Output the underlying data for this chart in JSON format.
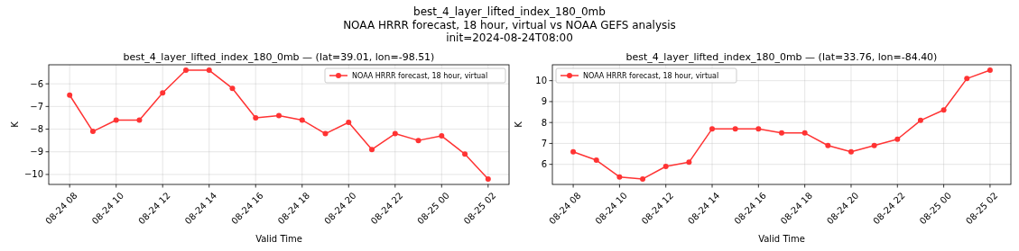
{
  "chart_data": [
    {
      "type": "line",
      "title": "best_4_layer_lifted_index_180_0mb — (lat=39.01, lon=-98.51)",
      "annotations": [
        "best_4_layer_lifted_index_180_0mb\nNOAA HRRR forecast, 18 hour, virtual vs NOAA GEFS analysis\ninit=2024-08-24T08:00"
      ],
      "xlabel": "Valid Time",
      "ylabel": "K",
      "x": [
        "2024-08-24T08:00",
        "2024-08-24T09:00",
        "2024-08-24T10:00",
        "2024-08-24T11:00",
        "2024-08-24T12:00",
        "2024-08-24T13:00",
        "2024-08-24T14:00",
        "2024-08-24T15:00",
        "2024-08-24T16:00",
        "2024-08-24T17:00",
        "2024-08-24T18:00",
        "2024-08-24T19:00",
        "2024-08-24T20:00",
        "2024-08-24T21:00",
        "2024-08-24T22:00",
        "2024-08-24T23:00",
        "2024-08-25T00:00",
        "2024-08-25T01:00",
        "2024-08-25T02:00"
      ],
      "series": [
        {
          "name": "NOAA HRRR forecast, 18 hour, virtual",
          "color": "#ff3333",
          "values": [
            -6.5,
            -8.1,
            -7.6,
            -7.6,
            -6.4,
            -5.4,
            -5.4,
            -6.2,
            -7.5,
            -7.4,
            -7.6,
            -8.2,
            -7.7,
            -8.9,
            -8.2,
            -8.5,
            -8.3,
            -9.1,
            -10.2
          ]
        }
      ],
      "xlim": [
        "2024-08-24T07:06",
        "2024-08-25T02:54"
      ],
      "xticks": [
        {
          "value": "2024-08-24T08:00",
          "label": "08-24 08"
        },
        {
          "value": "2024-08-24T10:00",
          "label": "08-24 10"
        },
        {
          "value": "2024-08-24T12:00",
          "label": "08-24 12"
        },
        {
          "value": "2024-08-24T14:00",
          "label": "08-24 14"
        },
        {
          "value": "2024-08-24T16:00",
          "label": "08-24 16"
        },
        {
          "value": "2024-08-24T18:00",
          "label": "08-24 18"
        },
        {
          "value": "2024-08-24T20:00",
          "label": "08-24 20"
        },
        {
          "value": "2024-08-24T22:00",
          "label": "08-24 22"
        },
        {
          "value": "2024-08-25T00:00",
          "label": "08-25 00"
        },
        {
          "value": "2024-08-25T02:00",
          "label": "08-25 02"
        }
      ],
      "ylim": [
        -10.44,
        -5.16
      ],
      "yticks": [
        -10,
        -9,
        -8,
        -7,
        -6
      ],
      "grid": true,
      "legend": "top right",
      "marker": "circle",
      "line_style": "solid"
    },
    {
      "type": "line",
      "title": "best_4_layer_lifted_index_180_0mb — (lat=33.76, lon=-84.40)",
      "xlabel": "Valid Time",
      "ylabel": "K",
      "x": [
        "2024-08-24T08:00",
        "2024-08-24T09:00",
        "2024-08-24T10:00",
        "2024-08-24T11:00",
        "2024-08-24T12:00",
        "2024-08-24T13:00",
        "2024-08-24T14:00",
        "2024-08-24T15:00",
        "2024-08-24T16:00",
        "2024-08-24T17:00",
        "2024-08-24T18:00",
        "2024-08-24T19:00",
        "2024-08-24T20:00",
        "2024-08-24T21:00",
        "2024-08-24T22:00",
        "2024-08-24T23:00",
        "2024-08-25T00:00",
        "2024-08-25T01:00",
        "2024-08-25T02:00"
      ],
      "series": [
        {
          "name": "NOAA HRRR forecast, 18 hour, virtual",
          "color": "#ff3333",
          "values": [
            6.6,
            6.2,
            5.4,
            5.3,
            5.9,
            6.1,
            7.7,
            7.7,
            7.7,
            7.5,
            7.5,
            6.9,
            6.6,
            6.9,
            7.2,
            8.1,
            8.6,
            10.1,
            10.5
          ]
        }
      ],
      "xlim": [
        "2024-08-24T07:06",
        "2024-08-25T02:54"
      ],
      "xticks": [
        {
          "value": "2024-08-24T08:00",
          "label": "08-24 08"
        },
        {
          "value": "2024-08-24T10:00",
          "label": "08-24 10"
        },
        {
          "value": "2024-08-24T12:00",
          "label": "08-24 12"
        },
        {
          "value": "2024-08-24T14:00",
          "label": "08-24 14"
        },
        {
          "value": "2024-08-24T16:00",
          "label": "08-24 16"
        },
        {
          "value": "2024-08-24T18:00",
          "label": "08-24 18"
        },
        {
          "value": "2024-08-24T20:00",
          "label": "08-24 20"
        },
        {
          "value": "2024-08-24T22:00",
          "label": "08-24 22"
        },
        {
          "value": "2024-08-25T00:00",
          "label": "08-25 00"
        },
        {
          "value": "2024-08-25T02:00",
          "label": "08-25 02"
        }
      ],
      "ylim": [
        5.04,
        10.76
      ],
      "yticks": [
        6,
        7,
        8,
        9,
        10
      ],
      "grid": true,
      "legend": "top left",
      "marker": "circle",
      "line_style": "solid"
    }
  ]
}
